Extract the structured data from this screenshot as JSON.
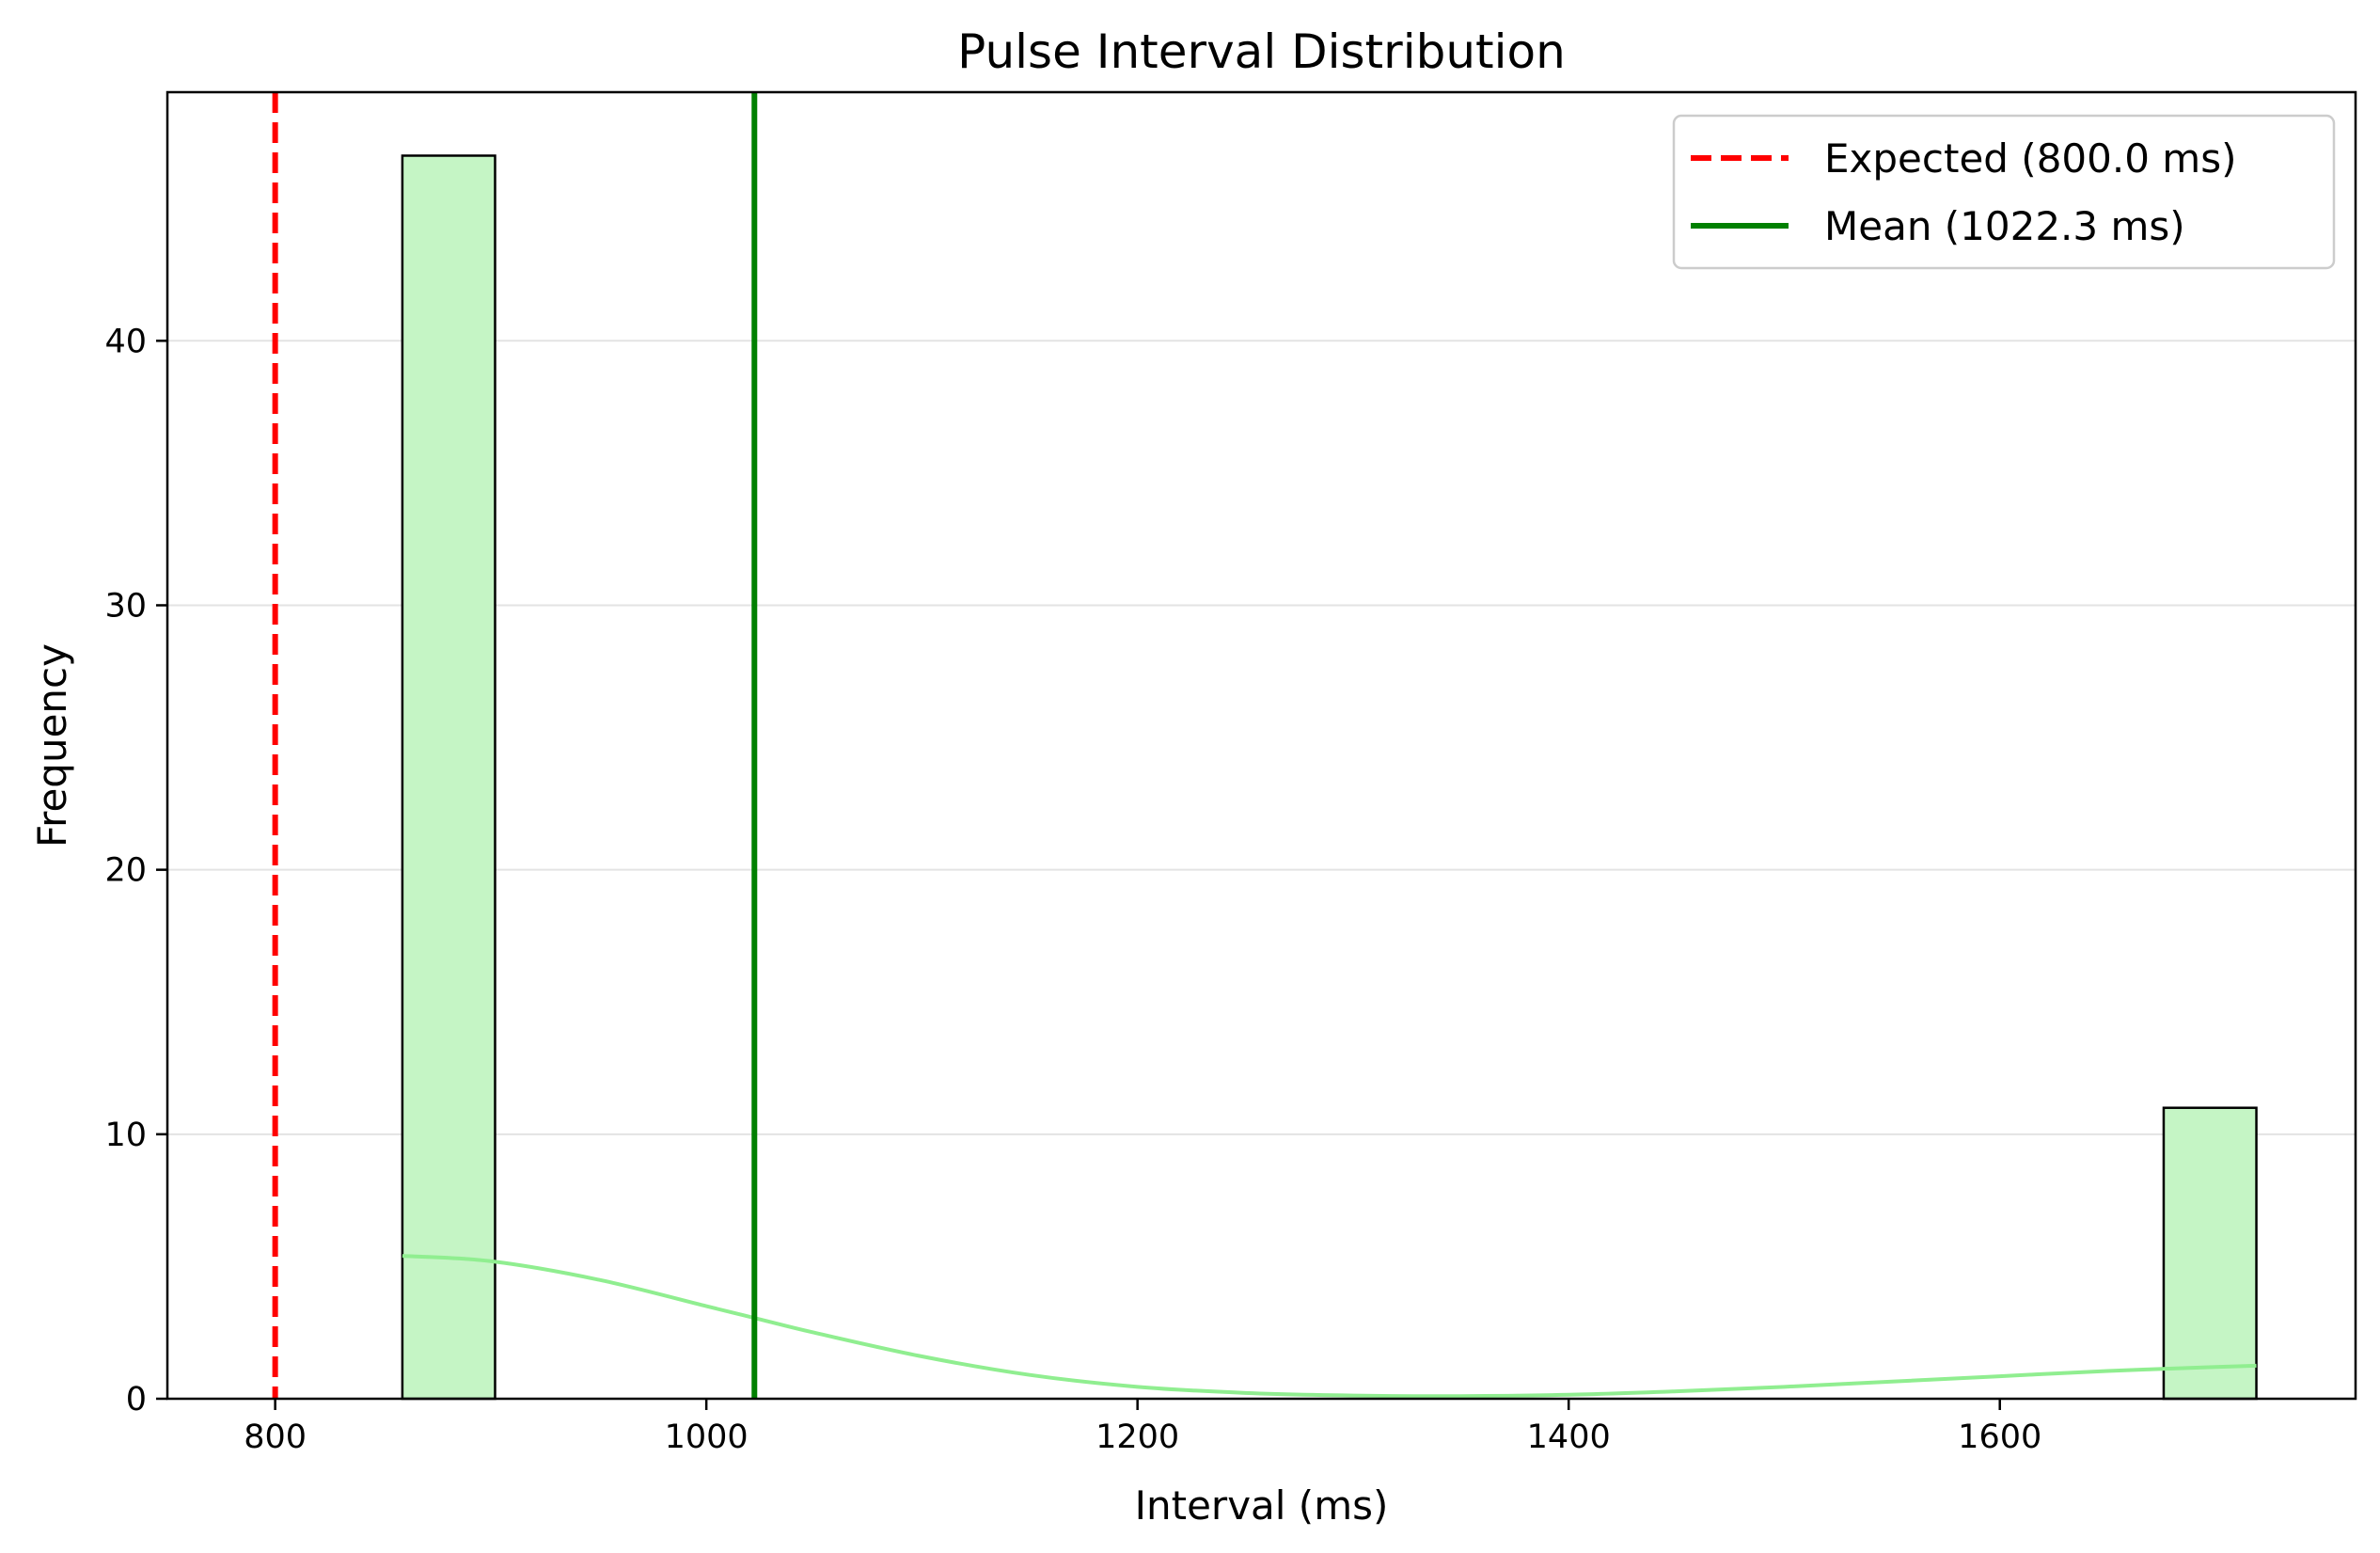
{
  "chart_data": {
    "type": "histogram",
    "title": "Pulse Interval Distribution",
    "xlabel": "Interval (ms)",
    "ylabel": "Frequency",
    "xlim": [
      750,
      1765
    ],
    "ylim": [
      0,
      49.4
    ],
    "xticks": [
      800,
      1000,
      1200,
      1400,
      1600
    ],
    "yticks": [
      0,
      10,
      20,
      30,
      40
    ],
    "grid": "horizontal",
    "legend_position": "top-right",
    "bar_color": "#c5f5c5",
    "bar_edge_color": "#000000",
    "bins": [
      {
        "start": 859,
        "end": 902,
        "count": 47
      },
      {
        "start": 902,
        "end": 945,
        "count": 0
      },
      {
        "start": 945,
        "end": 988,
        "count": 0
      },
      {
        "start": 988,
        "end": 1031,
        "count": 0
      },
      {
        "start": 1031,
        "end": 1074,
        "count": 0
      },
      {
        "start": 1074,
        "end": 1117,
        "count": 0
      },
      {
        "start": 1117,
        "end": 1160,
        "count": 0
      },
      {
        "start": 1160,
        "end": 1203,
        "count": 0
      },
      {
        "start": 1203,
        "end": 1246,
        "count": 0
      },
      {
        "start": 1246,
        "end": 1289,
        "count": 0
      },
      {
        "start": 1289,
        "end": 1332,
        "count": 0
      },
      {
        "start": 1332,
        "end": 1375,
        "count": 0
      },
      {
        "start": 1375,
        "end": 1418,
        "count": 0
      },
      {
        "start": 1418,
        "end": 1461,
        "count": 0
      },
      {
        "start": 1461,
        "end": 1504,
        "count": 0
      },
      {
        "start": 1504,
        "end": 1547,
        "count": 0
      },
      {
        "start": 1547,
        "end": 1590,
        "count": 0
      },
      {
        "start": 1590,
        "end": 1633,
        "count": 0
      },
      {
        "start": 1633,
        "end": 1676,
        "count": 0
      },
      {
        "start": 1676,
        "end": 1719,
        "count": 11
      }
    ],
    "kde": {
      "color": "#90ee90",
      "x": [
        859,
        900,
        950,
        1000,
        1025,
        1050,
        1100,
        1150,
        1200,
        1250,
        1300,
        1350,
        1400,
        1450,
        1500,
        1550,
        1600,
        1650,
        1700,
        1719
      ],
      "y": [
        5.4,
        5.2,
        4.5,
        3.5,
        3.0,
        2.5,
        1.6,
        0.9,
        0.45,
        0.22,
        0.12,
        0.1,
        0.15,
        0.28,
        0.45,
        0.65,
        0.85,
        1.05,
        1.2,
        1.25
      ]
    },
    "reference_lines": [
      {
        "name": "Expected (800.0 ms)",
        "x": 800,
        "color": "#ff0000",
        "style": "dashed"
      },
      {
        "name": "Mean (1022.3 ms)",
        "x": 1022.3,
        "color": "#008000",
        "style": "solid"
      }
    ]
  }
}
